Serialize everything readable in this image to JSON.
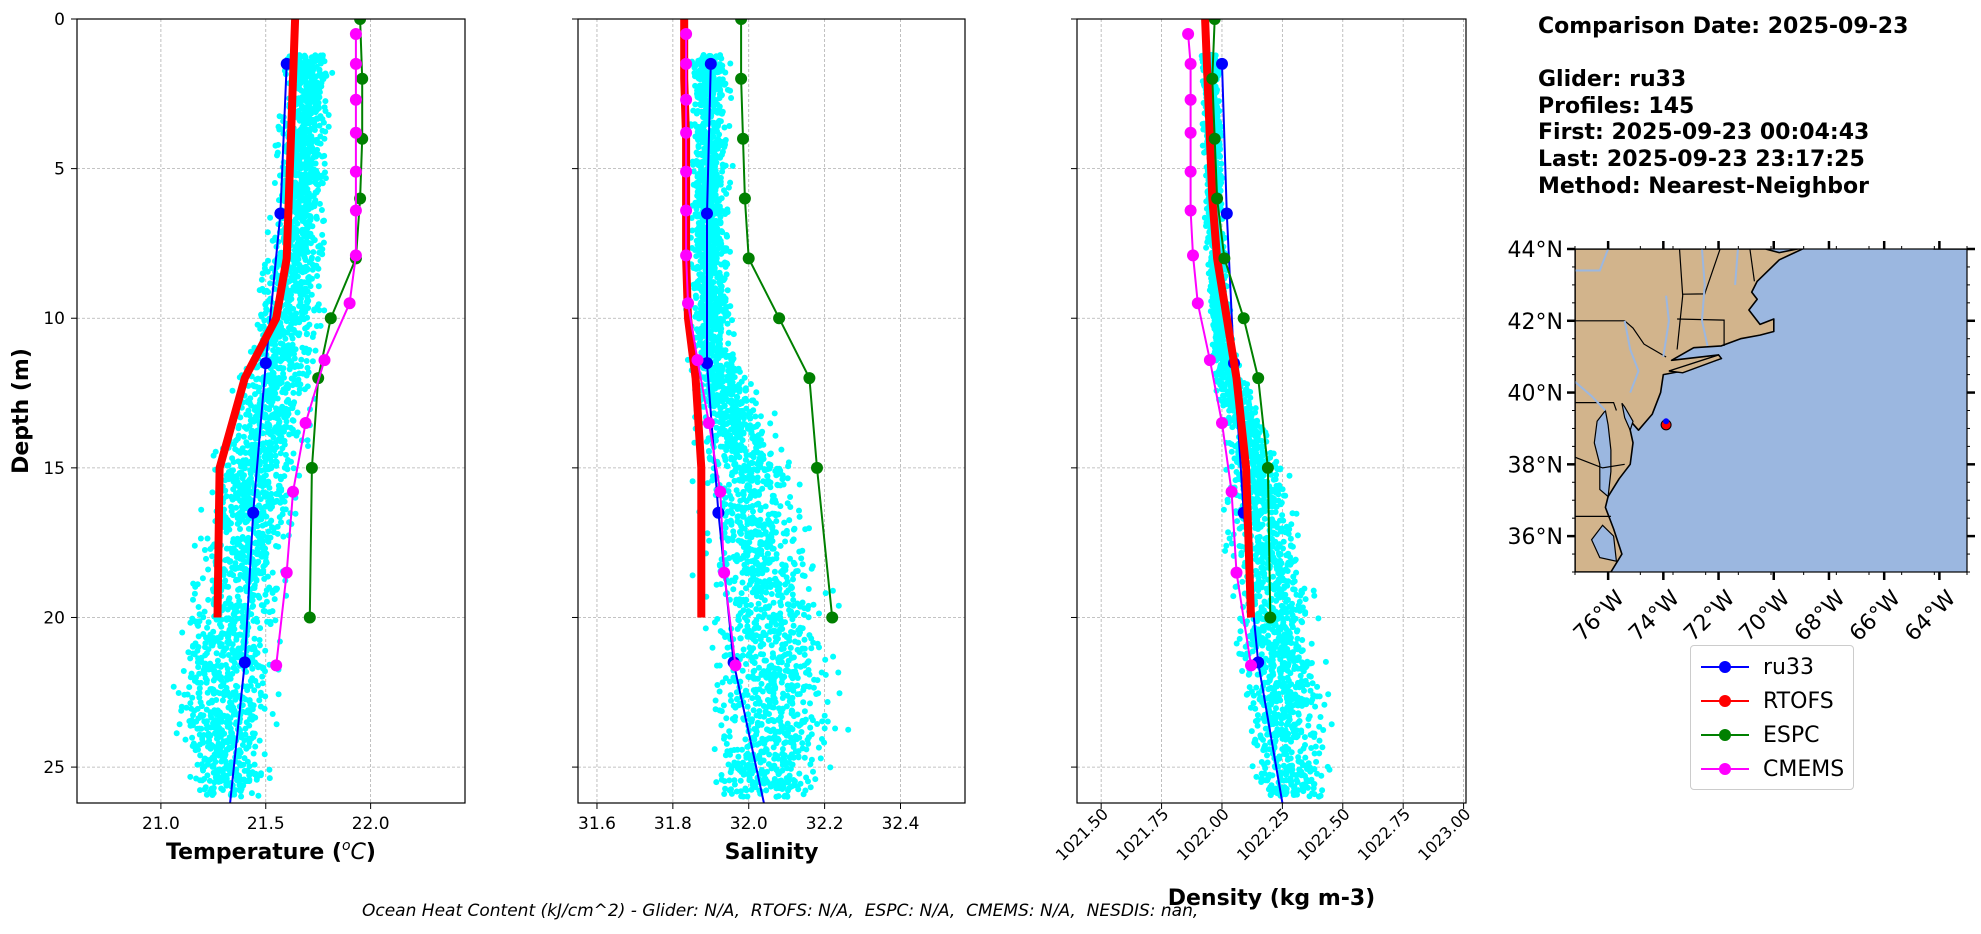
{
  "chart_data": [
    {
      "type": "line",
      "xlabel": "Temperature ($^{o}C$)",
      "ylabel": "Depth (m)",
      "xlim": [
        20.6,
        22.45
      ],
      "ylim": [
        26.2,
        0
      ],
      "xticks": [
        21.0,
        21.5,
        22.0
      ],
      "xticklabels": [
        "21.0",
        "21.5",
        "22.0"
      ],
      "yticks": [
        0,
        5,
        10,
        15,
        20,
        25
      ],
      "yticklabels": [
        "0",
        "5",
        "10",
        "15",
        "20",
        "25"
      ],
      "grid": true,
      "scatter": {
        "color": "#00ffff",
        "x_min": [
          21.55,
          21.48,
          21.35,
          21.2,
          21.05,
          21.0,
          21.1
        ],
        "x_max": [
          21.85,
          21.82,
          21.8,
          21.72,
          21.65,
          21.6,
          21.55
        ],
        "depths": [
          1.2,
          7,
          11,
          15,
          20,
          24,
          26
        ]
      },
      "series": [
        {
          "name": "ru33",
          "color": "#0000ff",
          "depth": [
            1.5,
            6.5,
            11.5,
            16.5,
            21.5,
            26.2
          ],
          "values": [
            21.6,
            21.57,
            21.5,
            21.44,
            21.4,
            21.33
          ]
        },
        {
          "name": "RTOFS",
          "color": "#ff0000",
          "depth": [
            0,
            2,
            4,
            6,
            8,
            10,
            12,
            15,
            20
          ],
          "values": [
            21.64,
            21.63,
            21.62,
            21.61,
            21.6,
            21.55,
            21.4,
            21.28,
            21.27
          ]
        },
        {
          "name": "ESPC",
          "color": "#008000",
          "depth": [
            0,
            2,
            4,
            6,
            8,
            10,
            12,
            15,
            20
          ],
          "values": [
            21.95,
            21.96,
            21.96,
            21.95,
            21.93,
            21.81,
            21.75,
            21.72,
            21.71
          ]
        },
        {
          "name": "CMEMS",
          "color": "#ff00ff",
          "depth": [
            0.5,
            1.5,
            2.7,
            3.8,
            5.1,
            6.4,
            7.9,
            9.5,
            11.4,
            13.5,
            15.8,
            18.5,
            21.6
          ],
          "values": [
            21.93,
            21.93,
            21.93,
            21.93,
            21.93,
            21.93,
            21.93,
            21.9,
            21.78,
            21.69,
            21.63,
            21.6,
            21.55
          ]
        }
      ]
    },
    {
      "type": "line",
      "xlabel": "Salinity",
      "ylabel": "",
      "xlim": [
        31.55,
        32.57
      ],
      "ylim": [
        26.2,
        0
      ],
      "xticks": [
        31.6,
        31.8,
        32.0,
        32.2,
        32.4
      ],
      "xticklabels": [
        "31.6",
        "31.8",
        "32.0",
        "32.2",
        "32.4"
      ],
      "yticks": [
        0,
        5,
        10,
        15,
        20,
        25
      ],
      "yticklabels": [],
      "grid": true,
      "scatter": {
        "color": "#00ffff",
        "x_min": [
          31.83,
          31.83,
          31.83,
          31.84,
          31.84,
          31.85,
          31.86
        ],
        "x_max": [
          31.96,
          31.96,
          31.98,
          32.15,
          32.27,
          32.29,
          32.22
        ],
        "depths": [
          1.2,
          7,
          11,
          15,
          20,
          24,
          26
        ]
      },
      "series": [
        {
          "name": "ru33",
          "color": "#0000ff",
          "depth": [
            1.5,
            6.5,
            11.5,
            16.5,
            21.5,
            26.2
          ],
          "values": [
            31.9,
            31.89,
            31.89,
            31.92,
            31.96,
            32.04
          ]
        },
        {
          "name": "RTOFS",
          "color": "#ff0000",
          "depth": [
            0,
            2,
            4,
            6,
            8,
            10,
            12,
            15,
            20
          ],
          "values": [
            31.83,
            31.83,
            31.835,
            31.835,
            31.835,
            31.84,
            31.86,
            31.875,
            31.875
          ]
        },
        {
          "name": "ESPC",
          "color": "#008000",
          "depth": [
            0,
            2,
            4,
            6,
            8,
            10,
            12,
            15,
            20
          ],
          "values": [
            31.98,
            31.98,
            31.985,
            31.99,
            32.0,
            32.08,
            32.16,
            32.18,
            32.22
          ]
        },
        {
          "name": "CMEMS",
          "color": "#ff00ff",
          "depth": [
            0.5,
            1.5,
            2.7,
            3.8,
            5.1,
            6.4,
            7.9,
            9.5,
            11.4,
            13.5,
            15.8,
            18.5,
            21.6
          ],
          "values": [
            31.835,
            31.835,
            31.835,
            31.835,
            31.835,
            31.835,
            31.835,
            31.84,
            31.865,
            31.895,
            31.925,
            31.935,
            31.965
          ]
        }
      ]
    },
    {
      "type": "line",
      "xlabel": "Density (kg m-3)",
      "ylabel": "",
      "xlim": [
        1021.4,
        1023.01
      ],
      "ylim": [
        26.2,
        0
      ],
      "xticks": [
        1021.5,
        1021.75,
        1022.0,
        1022.25,
        1022.5,
        1022.75,
        1023.0
      ],
      "xticklabels": [
        "1021.50",
        "1021.75",
        "1022.00",
        "1022.25",
        "1022.50",
        "1022.75",
        "1023.00"
      ],
      "yticks": [
        0,
        5,
        10,
        15,
        20,
        25
      ],
      "yticklabels": [],
      "grid": true,
      "scatter": {
        "color": "#00ffff",
        "x_min": [
          1021.9,
          1021.92,
          1021.95,
          1021.98,
          1022.0,
          1022.05,
          1022.1
        ],
        "x_max": [
          1022.0,
          1022.02,
          1022.05,
          1022.3,
          1022.45,
          1022.5,
          1022.48
        ],
        "depths": [
          1.2,
          7,
          11,
          15,
          20,
          24,
          26
        ]
      },
      "series": [
        {
          "name": "ru33",
          "color": "#0000ff",
          "depth": [
            1.5,
            6.5,
            11.5,
            16.5,
            21.5,
            26.2
          ],
          "values": [
            1022.0,
            1022.02,
            1022.05,
            1022.09,
            1022.15,
            1022.25
          ]
        },
        {
          "name": "RTOFS",
          "color": "#ff0000",
          "depth": [
            0,
            2,
            4,
            6,
            8,
            10,
            12,
            15,
            20
          ],
          "values": [
            1021.93,
            1021.94,
            1021.95,
            1021.96,
            1021.98,
            1022.02,
            1022.06,
            1022.1,
            1022.12
          ]
        },
        {
          "name": "ESPC",
          "color": "#008000",
          "depth": [
            0,
            2,
            4,
            6,
            8,
            10,
            12,
            15,
            20
          ],
          "values": [
            1021.97,
            1021.96,
            1021.97,
            1021.98,
            1022.01,
            1022.09,
            1022.15,
            1022.19,
            1022.2
          ]
        },
        {
          "name": "CMEMS",
          "color": "#ff00ff",
          "depth": [
            0.5,
            1.5,
            2.7,
            3.8,
            5.1,
            6.4,
            7.9,
            9.5,
            11.4,
            13.5,
            15.8,
            18.5,
            21.6
          ],
          "values": [
            1021.86,
            1021.87,
            1021.87,
            1021.87,
            1021.87,
            1021.87,
            1021.88,
            1021.9,
            1021.95,
            1022.0,
            1022.04,
            1022.06,
            1022.12
          ]
        }
      ]
    }
  ],
  "info": {
    "line1": "Comparison Date: 2025-09-23",
    "line2": "Glider: ru33",
    "line3": "Profiles: 145",
    "line4": "First: 2025-09-23 00:04:43",
    "line5": "Last: 2025-09-23 23:17:25",
    "line6": "Method: Nearest-Neighbor"
  },
  "map": {
    "lat_labels": [
      "44°N",
      "42°N",
      "40°N",
      "38°N",
      "36°N"
    ],
    "lon_labels": [
      "76°W",
      "74°W",
      "72°W",
      "70°W",
      "68°W",
      "66°W",
      "64°W"
    ],
    "land_color": "#d2b48c",
    "ocean_color": "#9bb7e0"
  },
  "legend": [
    {
      "label": "ru33",
      "color": "#0000ff"
    },
    {
      "label": "RTOFS",
      "color": "#ff0000"
    },
    {
      "label": "ESPC",
      "color": "#008000"
    },
    {
      "label": "CMEMS",
      "color": "#ff00ff"
    }
  ],
  "footer": "Ocean Heat Content (kJ/cm^2) - Glider: N/A,  RTOFS: N/A,  ESPC: N/A,  CMEMS: N/A,  NESDIS: nan,"
}
